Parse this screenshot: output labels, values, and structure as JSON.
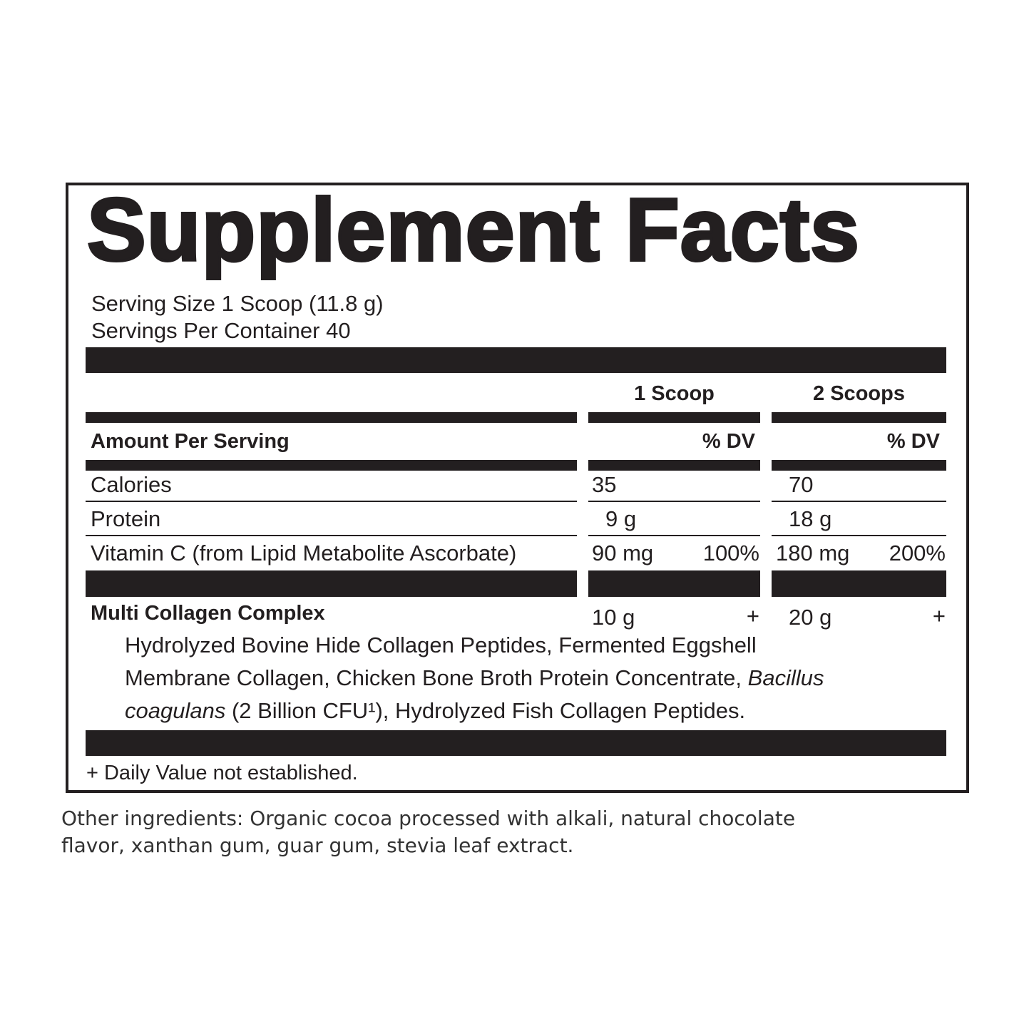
{
  "title": "Supplement Facts",
  "serving_size": "Serving Size 1 Scoop (11.8 g)",
  "servings_per_container": "Servings Per Container 40",
  "columns": {
    "col1": "1 Scoop",
    "col2": "2 Scoops"
  },
  "amount_header": "Amount Per Serving",
  "dv_header": "% DV",
  "rows": [
    {
      "name": "Calories",
      "amt1": "35",
      "dv1": "",
      "amt2": "70",
      "dv2": ""
    },
    {
      "name": "Protein",
      "amt1": "9 g",
      "dv1": "",
      "amt2": "18 g",
      "dv2": ""
    },
    {
      "name": "Vitamin C (from Lipid Metabolite Ascorbate)",
      "amt1": "90 mg",
      "dv1": "100%",
      "amt2": "180 mg",
      "dv2": "200%"
    }
  ],
  "complex": {
    "name": "Multi Collagen Complex",
    "amt1": "10 g",
    "dv1": "+",
    "amt2": "20 g",
    "dv2": "+",
    "line1": "Hydrolyzed Bovine Hide Collagen Peptides, Fermented Eggshell",
    "line2a": "Membrane Collagen, Chicken Bone Broth Protein Concentrate, ",
    "line2b": "Bacillus",
    "line3a": "coagulans",
    "line3b": " (2 Billion CFU¹), Hydrolyzed Fish Collagen Peptides."
  },
  "footnote": "+ Daily Value not established.",
  "other_ingredients": {
    "line1": "Other ingredients: Organic cocoa processed with alkali, natural chocolate",
    "line2": "flavor, xanthan gum, guar gum, stevia leaf extract."
  }
}
